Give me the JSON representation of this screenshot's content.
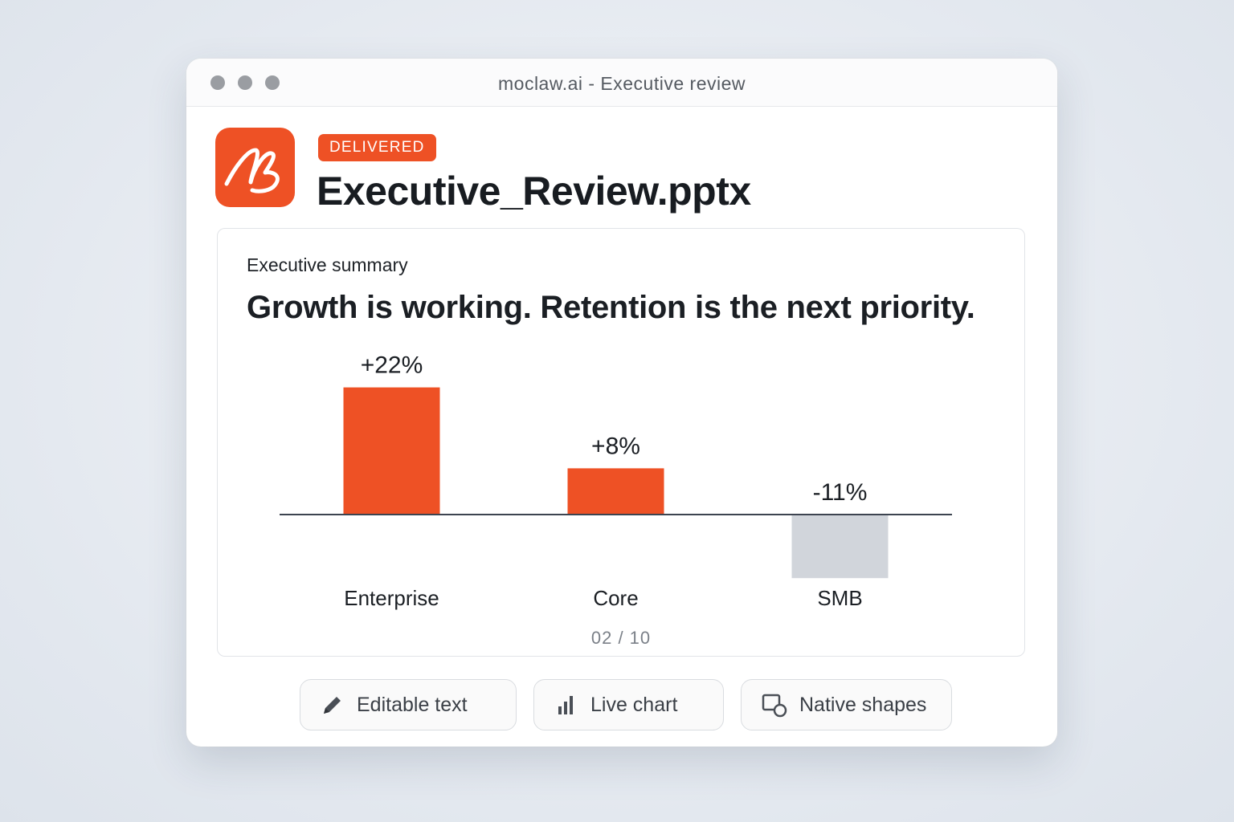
{
  "window": {
    "title": "moclaw.ai - Executive review"
  },
  "file": {
    "status": "DELIVERED",
    "name": "Executive_Review.pptx"
  },
  "slide": {
    "eyebrow": "Executive summary",
    "headline": "Growth is working. Retention is the next priority.",
    "page": "02 / 10"
  },
  "chart_data": {
    "type": "bar",
    "categories": [
      "Enterprise",
      "Core",
      "SMB"
    ],
    "values": [
      22,
      8,
      -11
    ],
    "value_labels": [
      "+22%",
      "+8%",
      "-11%"
    ],
    "colors": [
      "#ee5125",
      "#ee5125",
      "#d1d5db"
    ]
  },
  "features": [
    {
      "label": "Editable text"
    },
    {
      "label": "Live chart"
    },
    {
      "label": "Native shapes"
    }
  ]
}
